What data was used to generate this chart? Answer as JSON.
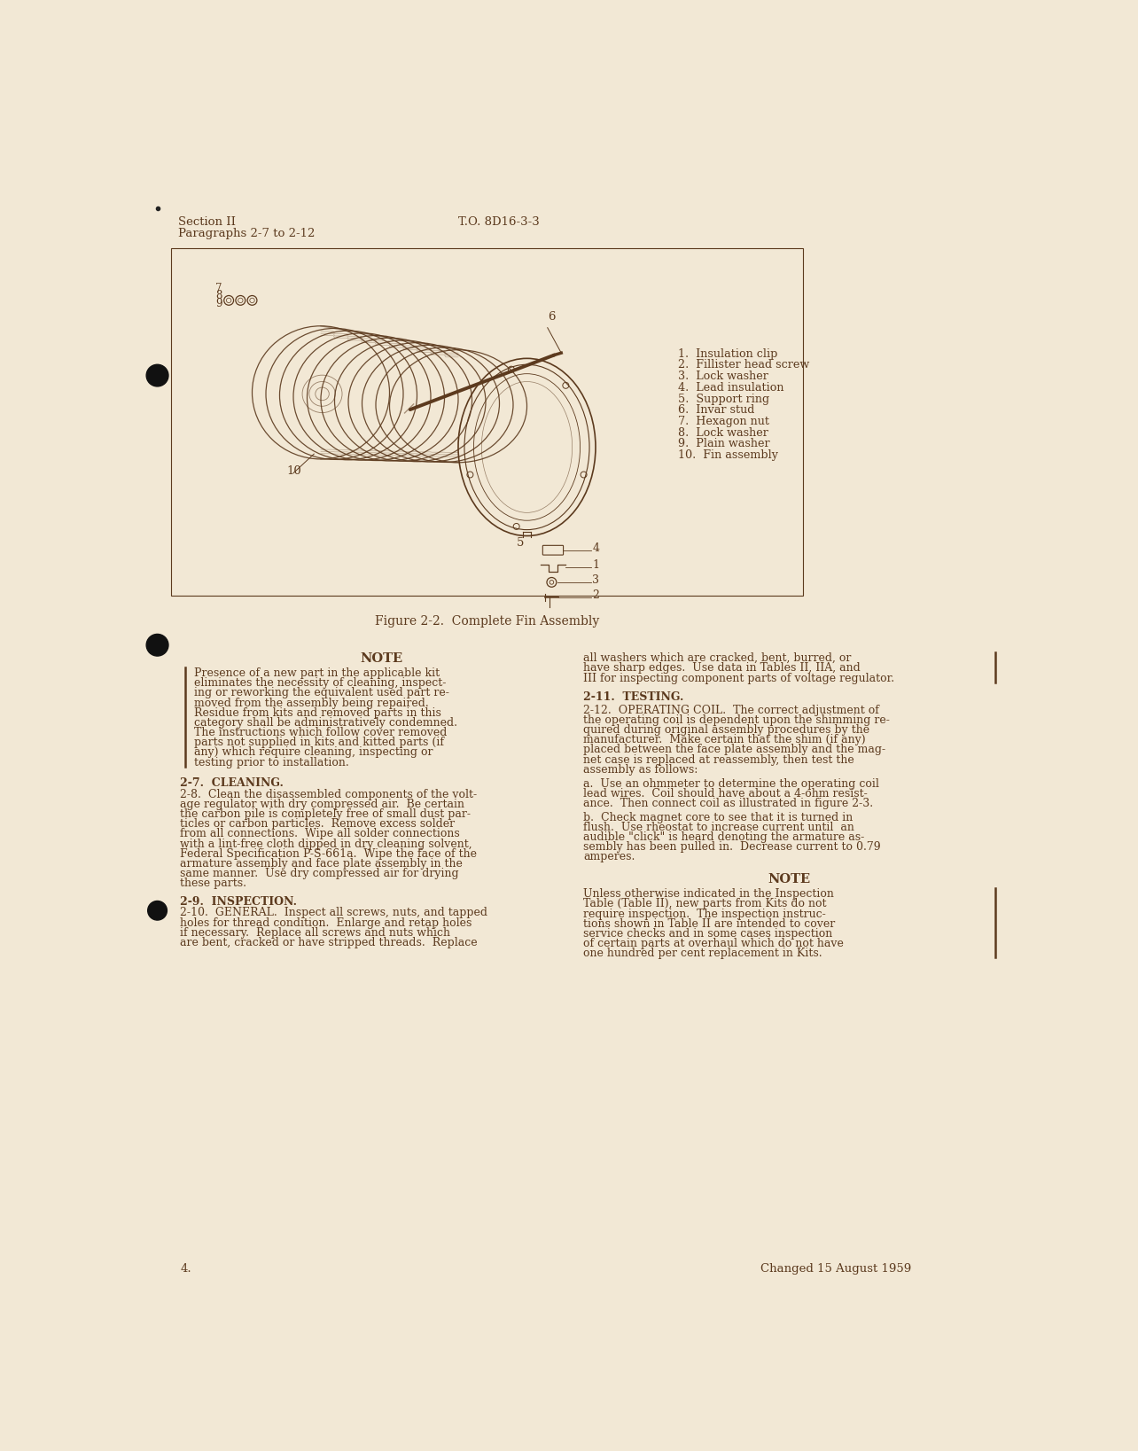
{
  "page_bg_color": "#F2E8D5",
  "text_color": "#5C3A1E",
  "header_left_line1": "Section II",
  "header_left_line2": "Paragraphs 2-7 to 2-12",
  "header_center": "T.O. 8D16-3-3",
  "figure_caption": "Figure 2-2.  Complete Fin Assembly",
  "page_number": "4.",
  "footer_right": "Changed 15 August 1959",
  "parts_list": [
    "1.  Insulation clip",
    "2.  Fillister head screw",
    "3.  Lock washer",
    "4.  Lead insulation",
    "5.  Support ring",
    "6.  Invar stud",
    "7.  Hexagon nut",
    "8.  Lock washer",
    "9.  Plain washer",
    "10.  Fin assembly"
  ],
  "note_title": "NOTE",
  "note_text_lines": [
    "Presence of a new part in the applicable kit",
    "eliminates the necessity of cleaning, inspect-",
    "ing or reworking the equivalent used part re-",
    "moved from the assembly being repaired.",
    "Residue from kits and removed parts in this",
    "category shall be administratively condemned.",
    "The instructions which follow cover removed",
    "parts not supplied in kits and kitted parts (if",
    "any) which require cleaning, inspecting or",
    "testing prior to installation."
  ],
  "section_27_title": "2-7.  CLEANING.",
  "section_28_lines": [
    "2-8.  Clean the disassembled components of the volt-",
    "age regulator with dry compressed air.  Be certain",
    "the carbon pile is completely free of small dust par-",
    "ticles or carbon particles.  Remove excess solder",
    "from all connections.  Wipe all solder connections",
    "with a lint-free cloth dipped in dry cleaning solvent,",
    "Federal Specification P-S-661a.  Wipe the face of the",
    "armature assembly and face plate assembly in the",
    "same manner.  Use dry compressed air for drying",
    "these parts."
  ],
  "section_29_title": "2-9.  INSPECTION.",
  "section_210_lines": [
    "2-10.  GENERAL.  Inspect all screws, nuts, and tapped",
    "holes for thread condition.  Enlarge and retap holes",
    "if necessary.  Replace all screws and nuts which",
    "are bent, cracked or have stripped threads.  Replace"
  ],
  "right_col_para1_lines": [
    "all washers which are cracked, bent, burred, or",
    "have sharp edges.  Use data in Tables II, IIA, and",
    "III for inspecting component parts of voltage regulator."
  ],
  "section_211_title": "2-11.  TESTING.",
  "section_212_lead": "2-12.  OPERATING COIL.  The correct adjustment of",
  "section_212_lines": [
    "the operating coil is dependent upon the shimming re-",
    "quired during original assembly procedures by the",
    "manufacturer.  Make certain that the shim (if any)",
    "placed between the face plate assembly and the mag-",
    "net case is replaced at reassembly, then test the",
    "assembly as follows:"
  ],
  "section_212a_lines": [
    "a.  Use an ohmmeter to determine the operating coil",
    "lead wires.  Coil should have about a 4-ohm resist-",
    "ance.  Then connect coil as illustrated in figure 2-3."
  ],
  "section_212b_lines": [
    "b.  Check magnet core to see that it is turned in",
    "flush.  Use rheostat to increase current until  an",
    "audible \"click\" is heard denoting the armature as-",
    "sembly has been pulled in.  Decrease current to 0.79",
    "amperes."
  ],
  "note2_title": "NOTE",
  "note2_text_lines": [
    "Unless otherwise indicated in the Inspection",
    "Table (Table II), new parts from Kits do not",
    "require inspection.  The inspection instruc-",
    "tions shown in Table II are intended to cover",
    "service checks and in some cases inspection",
    "of certain parts at overhaul which do not have",
    "one hundred per cent replacement in Kits."
  ]
}
